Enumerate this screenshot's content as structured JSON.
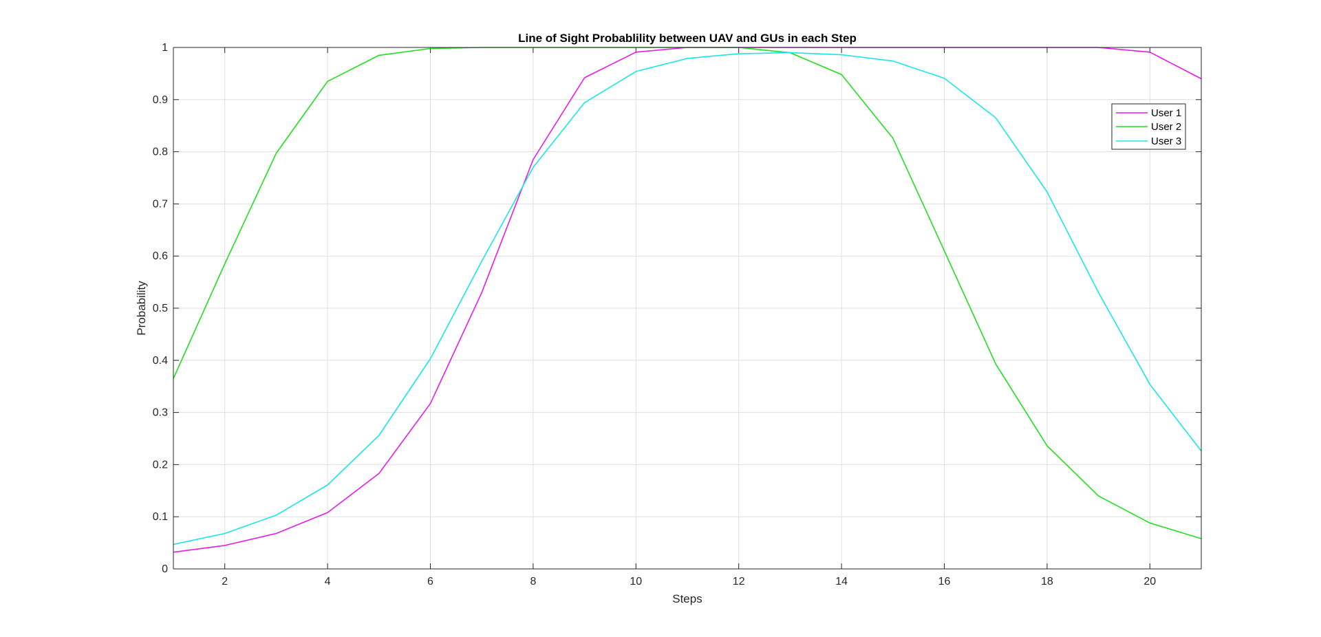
{
  "chart_data": {
    "type": "line",
    "title": "Line of Sight Probablility between UAV and GUs in each Step",
    "xlabel": "Steps",
    "ylabel": "Probability",
    "xlim": [
      1,
      21
    ],
    "ylim": [
      0,
      1
    ],
    "xticks": [
      2,
      4,
      6,
      8,
      10,
      12,
      14,
      16,
      18,
      20
    ],
    "yticks": [
      0,
      0.1,
      0.2,
      0.3,
      0.4,
      0.5,
      0.6,
      0.7,
      0.8,
      0.9,
      1
    ],
    "grid": true,
    "legend_position": "top-right",
    "x": [
      1,
      2,
      3,
      4,
      5,
      6,
      7,
      8,
      9,
      10,
      11,
      12,
      13,
      14,
      15,
      16,
      17,
      18,
      19,
      20,
      21
    ],
    "series": [
      {
        "name": "User 1",
        "color": "#e619e6",
        "values": [
          0.032,
          0.045,
          0.068,
          0.108,
          0.183,
          0.317,
          0.53,
          0.785,
          0.942,
          0.991,
          1.0,
          1.0,
          1.0,
          1.0,
          1.0,
          1.0,
          1.0,
          1.0,
          1.0,
          0.991,
          0.94
        ]
      },
      {
        "name": "User 2",
        "color": "#1de01d",
        "values": [
          0.365,
          0.585,
          0.797,
          0.935,
          0.985,
          0.998,
          1.0,
          1.0,
          1.0,
          1.0,
          1.0,
          1.0,
          0.99,
          0.948,
          0.826,
          0.61,
          0.393,
          0.236,
          0.14,
          0.088,
          0.058
        ]
      },
      {
        "name": "User 3",
        "color": "#19e6e6",
        "values": [
          0.047,
          0.068,
          0.103,
          0.161,
          0.256,
          0.403,
          0.59,
          0.77,
          0.894,
          0.954,
          0.979,
          0.988,
          0.99,
          0.986,
          0.974,
          0.941,
          0.865,
          0.723,
          0.53,
          0.354,
          0.226
        ]
      }
    ]
  }
}
